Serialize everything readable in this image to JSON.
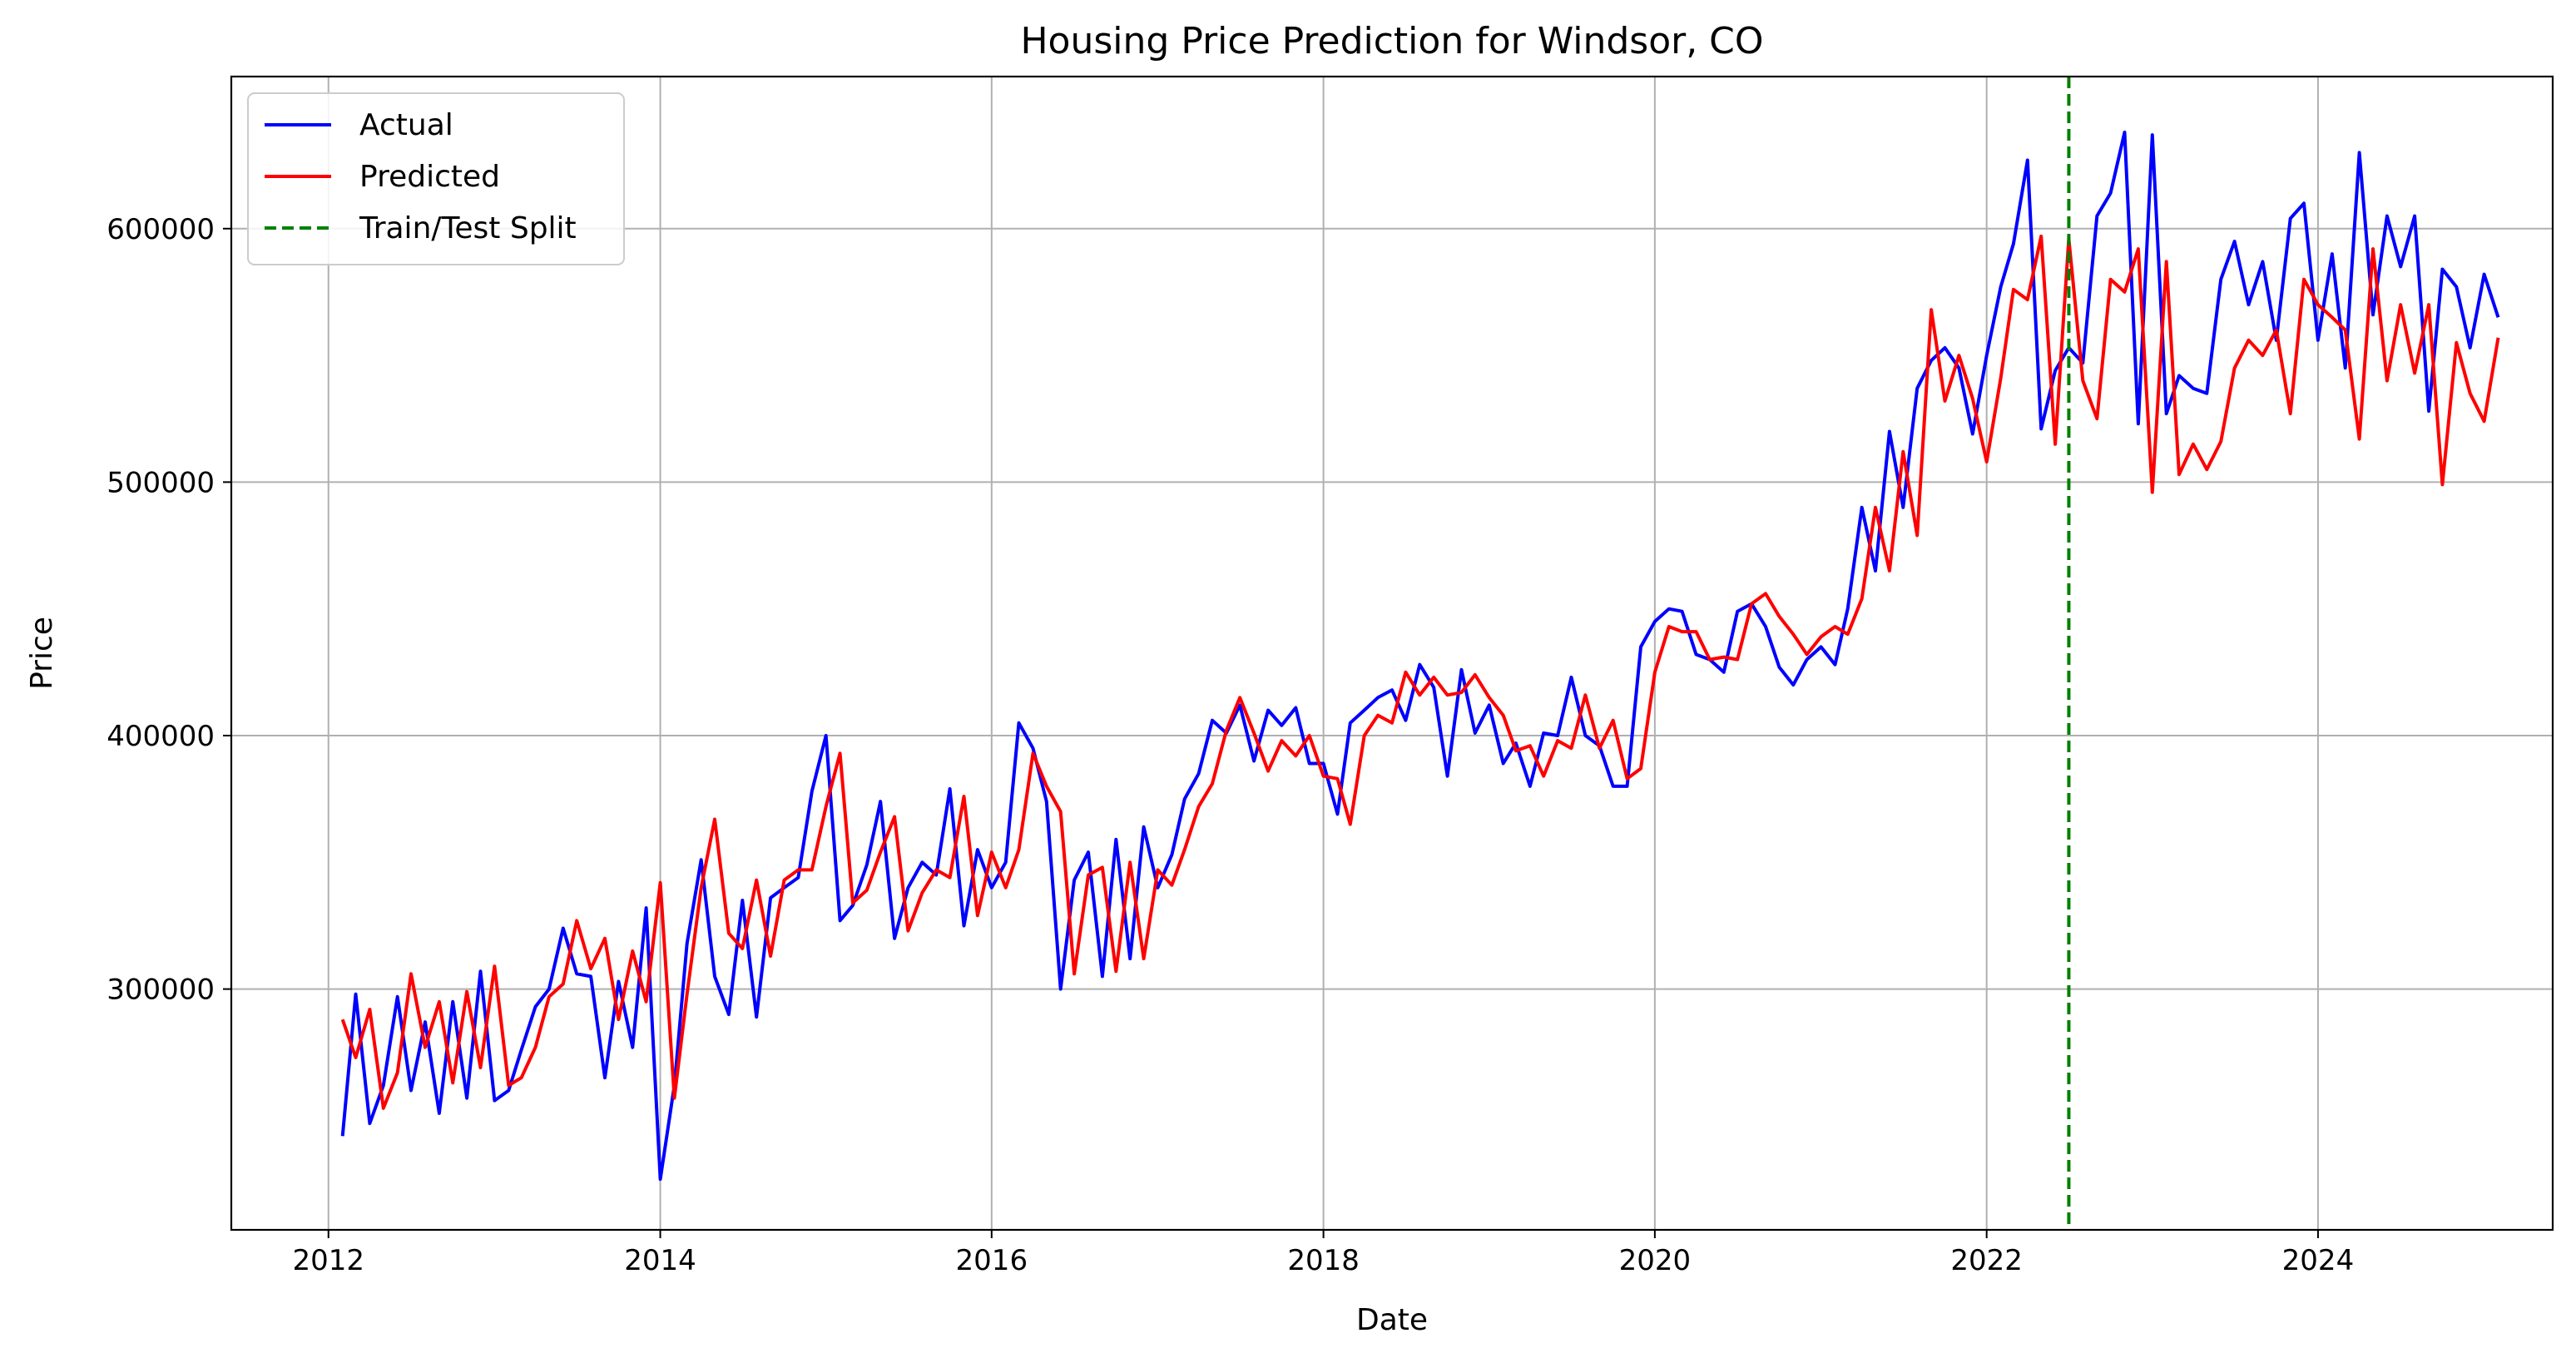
{
  "chart_data": {
    "type": "line",
    "title": "Housing Price Prediction for Windsor, CO",
    "xlabel": "Date",
    "ylabel": "Price",
    "xlim": [
      "2011-06-01",
      "2025-06-01"
    ],
    "ylim": [
      205000,
      660000
    ],
    "xticks": [
      "2012-01-01",
      "2014-01-01",
      "2016-01-01",
      "2018-01-01",
      "2020-01-01",
      "2022-01-01",
      "2024-01-01"
    ],
    "xtick_labels": [
      "2012",
      "2014",
      "2016",
      "2018",
      "2020",
      "2022",
      "2024"
    ],
    "yticks": [
      300000,
      400000,
      500000,
      600000
    ],
    "ytick_labels": [
      "300000",
      "400000",
      "500000",
      "600000"
    ],
    "grid": true,
    "legend_position": "top-left",
    "split": {
      "name": "Train/Test Split",
      "x": "2022-07-01",
      "color": "#008000"
    },
    "series_start": "2012-02-01",
    "series": [
      {
        "name": "Actual",
        "color": "#0000ff",
        "values": [
          242000,
          298000,
          247000,
          262000,
          297000,
          260000,
          287000,
          251000,
          295000,
          257000,
          307000,
          256000,
          260000,
          276000,
          293000,
          300000,
          324000,
          306000,
          305000,
          265000,
          303000,
          277000,
          332000,
          225000,
          262000,
          318000,
          351000,
          305000,
          290000,
          335000,
          289000,
          336000,
          340000,
          344000,
          378000,
          400000,
          327000,
          333000,
          349000,
          374000,
          320000,
          340000,
          350000,
          345000,
          379000,
          325000,
          355000,
          340000,
          350000,
          405000,
          395000,
          374000,
          300000,
          343000,
          354000,
          305000,
          359000,
          312000,
          364000,
          340000,
          353000,
          375000,
          385000,
          406000,
          401000,
          412000,
          390000,
          410000,
          404000,
          411000,
          389000,
          389000,
          369000,
          405000,
          410000,
          415000,
          418000,
          406000,
          428000,
          419000,
          384000,
          426000,
          401000,
          412000,
          389000,
          397000,
          380000,
          401000,
          400000,
          423000,
          400000,
          396000,
          380000,
          380000,
          435000,
          445000,
          450000,
          449000,
          432000,
          430000,
          425000,
          449000,
          452000,
          443000,
          427000,
          420000,
          430000,
          435000,
          428000,
          450000,
          490000,
          465000,
          520000,
          490000,
          537000,
          548000,
          553000,
          545000,
          519000,
          550000,
          577000,
          594000,
          627000,
          521000,
          544000,
          553000,
          547000,
          605000,
          614000,
          638000,
          523000,
          637000,
          527000,
          542000,
          537000,
          535000,
          580000,
          595000,
          570000,
          587000,
          556000,
          604000,
          610000,
          556000,
          590000,
          545000,
          630000,
          566000,
          605000,
          585000,
          605000,
          528000,
          584000,
          577000,
          553000,
          582000,
          565000
        ]
      },
      {
        "name": "Predicted",
        "color": "#ff0000",
        "values": [
          288000,
          273000,
          292000,
          253000,
          267000,
          306000,
          277000,
          295000,
          263000,
          299000,
          269000,
          309000,
          262000,
          265000,
          277000,
          297000,
          302000,
          327000,
          308000,
          320000,
          288000,
          315000,
          295000,
          342000,
          257000,
          298000,
          340000,
          367000,
          322000,
          316000,
          343000,
          313000,
          343000,
          347000,
          347000,
          372000,
          393000,
          334000,
          339000,
          354000,
          368000,
          323000,
          338000,
          347000,
          344000,
          376000,
          329000,
          354000,
          340000,
          355000,
          393000,
          380000,
          370000,
          306000,
          345000,
          348000,
          307000,
          350000,
          312000,
          347000,
          341000,
          355000,
          372000,
          381000,
          402000,
          415000,
          401000,
          386000,
          398000,
          392000,
          400000,
          384000,
          383000,
          365000,
          400000,
          408000,
          405000,
          425000,
          416000,
          423000,
          416000,
          417000,
          424000,
          415000,
          408000,
          394000,
          396000,
          384000,
          398000,
          395000,
          416000,
          395000,
          406000,
          383000,
          387000,
          425000,
          443000,
          441000,
          441000,
          430000,
          431000,
          430000,
          452000,
          456000,
          447000,
          440000,
          432000,
          439000,
          443000,
          440000,
          454000,
          490000,
          465000,
          512000,
          479000,
          568000,
          532000,
          550000,
          533000,
          508000,
          541000,
          576000,
          572000,
          597000,
          515000,
          596000,
          540000,
          525000,
          580000,
          575000,
          592000,
          496000,
          587000,
          503000,
          515000,
          505000,
          516000,
          545000,
          556000,
          550000,
          560000,
          527000,
          580000,
          570000,
          565000,
          560000,
          517000,
          592000,
          540000,
          570000,
          543000,
          570000,
          499000,
          555000,
          535000,
          524000,
          557000
        ]
      }
    ]
  }
}
